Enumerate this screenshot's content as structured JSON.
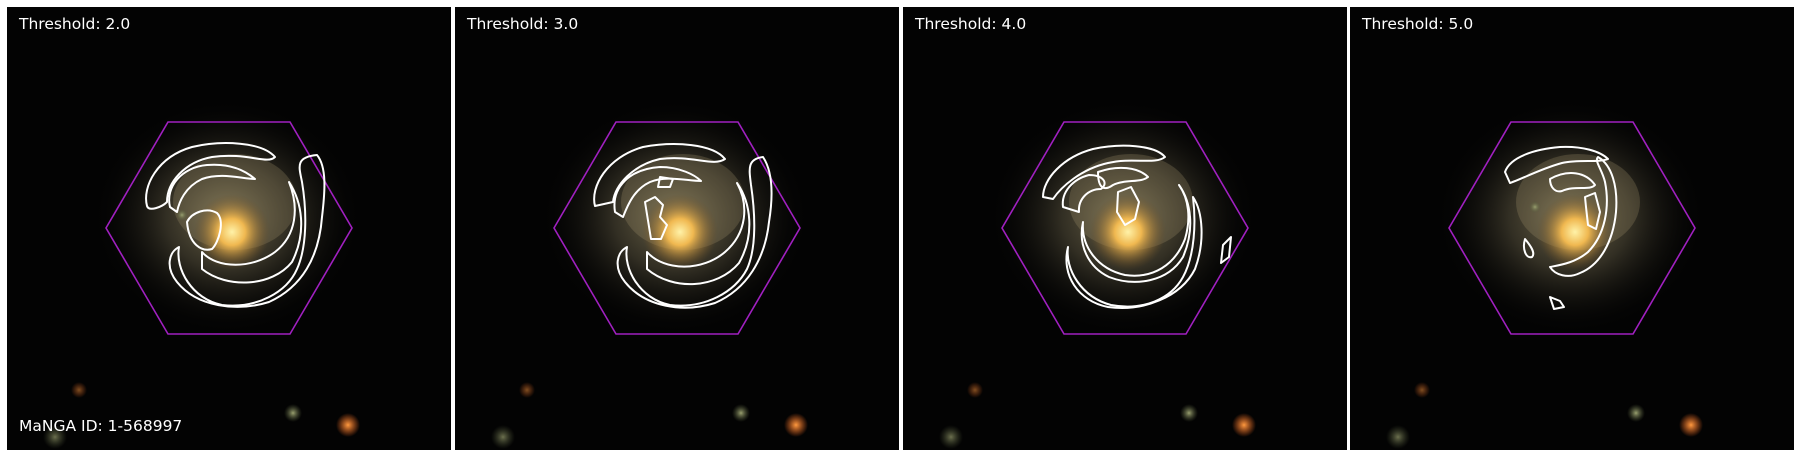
{
  "figure": {
    "manga_id_label": "MaNGA ID: 1-568997",
    "panels": [
      {
        "title": "Threshold: 2.0"
      },
      {
        "title": "Threshold: 3.0"
      },
      {
        "title": "Threshold: 4.0"
      },
      {
        "title": "Threshold: 5.0"
      }
    ]
  },
  "colors": {
    "background": "#030303",
    "ifu_hexagon": "#a020c0",
    "arm_contours": "#ffffff",
    "galaxy_core": "#ffd060",
    "galaxy_disk": "#c8b878",
    "label_text": "#ffffff",
    "panel_border": "#ffffff"
  }
}
